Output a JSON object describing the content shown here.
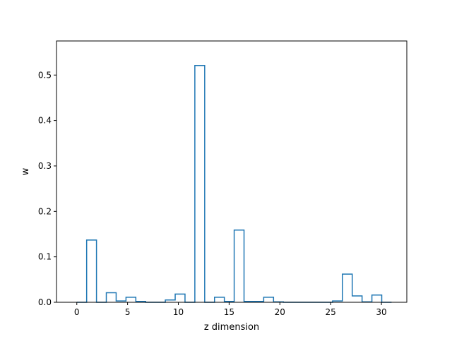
{
  "chart_data": {
    "type": "histogram-step",
    "title": "",
    "xlabel": "z dimension",
    "ylabel": "w",
    "xlim": [
      -2,
      32.5
    ],
    "ylim": [
      0,
      0.575
    ],
    "xticks": [
      0,
      5,
      10,
      15,
      20,
      25,
      30
    ],
    "yticks": [
      0.0,
      0.1,
      0.2,
      0.3,
      0.4,
      0.5
    ],
    "ytick_labels": [
      "0.0",
      "0.1",
      "0.2",
      "0.3",
      "0.4",
      "0.5"
    ],
    "grid": false,
    "legend": "none",
    "series": [
      {
        "color": "#1f77b4",
        "bins": [
          0,
          0.969,
          1.938,
          2.906,
          3.875,
          4.844,
          5.813,
          6.781,
          7.75,
          8.719,
          9.688,
          10.656,
          11.625,
          12.594,
          13.563,
          14.531,
          15.5,
          16.469,
          17.438,
          18.406,
          19.375,
          20.344,
          21.313,
          22.281,
          23.25,
          24.219,
          25.188,
          26.156,
          27.125,
          28.094,
          29.063,
          30.031,
          31.0
        ],
        "values": [
          0.0,
          0.137,
          0.0,
          0.021,
          0.003,
          0.011,
          0.002,
          0.0,
          0.0,
          0.005,
          0.018,
          0.0,
          0.521,
          0.0,
          0.011,
          0.002,
          0.159,
          0.002,
          0.002,
          0.011,
          0.001,
          0.0,
          0.0,
          0.0,
          0.0,
          0.0,
          0.003,
          0.062,
          0.014,
          0.001,
          0.016,
          0.0
        ]
      }
    ]
  }
}
